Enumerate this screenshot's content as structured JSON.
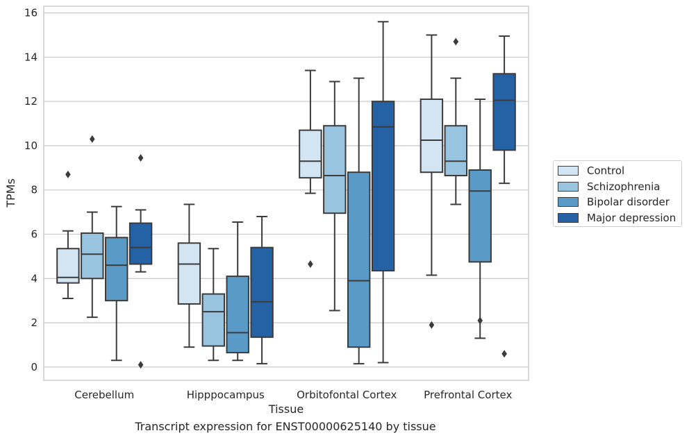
{
  "caption": "Transcript expression for ENST00000625140 by tissue",
  "chart_data": {
    "type": "box",
    "xlabel": "Tissue",
    "ylabel": "TPMs",
    "ylim": [
      -0.6,
      16.3
    ],
    "yticks": [
      0,
      2,
      4,
      6,
      8,
      10,
      12,
      14,
      16
    ],
    "grid": "horizontal",
    "legend_position": "right",
    "categories": [
      "Cerebellum",
      "Hipppocampus",
      "Orbitofontal Cortex",
      "Prefrontal Cortex"
    ],
    "series": [
      {
        "name": "Control",
        "color": "#d3e4f3",
        "boxes": [
          {
            "whisker_low": 3.1,
            "q1": 3.8,
            "median": 4.05,
            "q3": 5.35,
            "whisker_high": 6.15,
            "outliers": [
              8.7
            ]
          },
          {
            "whisker_low": 0.9,
            "q1": 2.85,
            "median": 4.65,
            "q3": 5.6,
            "whisker_high": 7.35,
            "outliers": []
          },
          {
            "whisker_low": 7.85,
            "q1": 8.55,
            "median": 9.3,
            "q3": 10.7,
            "whisker_high": 13.4,
            "outliers": [
              4.65
            ]
          },
          {
            "whisker_low": 4.15,
            "q1": 8.8,
            "median": 10.25,
            "q3": 12.1,
            "whisker_high": 15.0,
            "outliers": [
              1.9
            ]
          }
        ]
      },
      {
        "name": "Schizophrenia",
        "color": "#99c4e0",
        "boxes": [
          {
            "whisker_low": 2.25,
            "q1": 4.0,
            "median": 5.1,
            "q3": 6.05,
            "whisker_high": 7.0,
            "outliers": [
              10.3
            ]
          },
          {
            "whisker_low": 0.3,
            "q1": 0.95,
            "median": 2.5,
            "q3": 3.3,
            "whisker_high": 5.35,
            "outliers": []
          },
          {
            "whisker_low": 2.55,
            "q1": 6.95,
            "median": 8.65,
            "q3": 10.9,
            "whisker_high": 12.9,
            "outliers": []
          },
          {
            "whisker_low": 7.35,
            "q1": 8.65,
            "median": 9.3,
            "q3": 10.9,
            "whisker_high": 13.05,
            "outliers": [
              14.7
            ]
          }
        ]
      },
      {
        "name": "Bipolar disorder",
        "color": "#5a9ac7",
        "boxes": [
          {
            "whisker_low": 0.3,
            "q1": 3.0,
            "median": 4.6,
            "q3": 5.85,
            "whisker_high": 7.25,
            "outliers": []
          },
          {
            "whisker_low": 0.3,
            "q1": 0.65,
            "median": 1.55,
            "q3": 4.1,
            "whisker_high": 6.55,
            "outliers": []
          },
          {
            "whisker_low": 0.15,
            "q1": 0.9,
            "median": 3.9,
            "q3": 8.8,
            "whisker_high": 13.05,
            "outliers": []
          },
          {
            "whisker_low": 1.3,
            "q1": 4.75,
            "median": 7.95,
            "q3": 8.9,
            "whisker_high": 12.1,
            "outliers": [
              2.1
            ]
          }
        ]
      },
      {
        "name": "Major depression",
        "color": "#2462a5",
        "boxes": [
          {
            "whisker_low": 4.3,
            "q1": 4.65,
            "median": 5.4,
            "q3": 6.5,
            "whisker_high": 7.1,
            "outliers": [
              9.45,
              0.1
            ]
          },
          {
            "whisker_low": 0.15,
            "q1": 1.35,
            "median": 2.95,
            "q3": 5.4,
            "whisker_high": 6.8,
            "outliers": []
          },
          {
            "whisker_low": 0.2,
            "q1": 4.35,
            "median": 10.85,
            "q3": 12.0,
            "whisker_high": 15.6,
            "outliers": []
          },
          {
            "whisker_low": 8.3,
            "q1": 9.8,
            "median": 12.05,
            "q3": 13.25,
            "whisker_high": 14.95,
            "outliers": [
              0.6
            ]
          }
        ]
      }
    ]
  }
}
